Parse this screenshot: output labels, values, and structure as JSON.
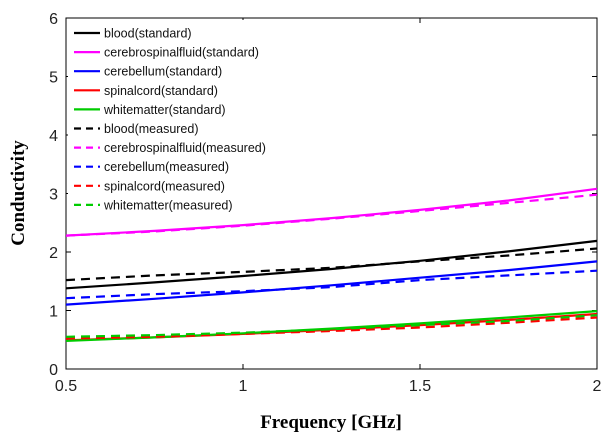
{
  "chart_data": {
    "type": "line",
    "xlabel": "Frequency [GHz]",
    "ylabel": "Conductivity",
    "xlim": [
      0.5,
      2
    ],
    "ylim": [
      0,
      6
    ],
    "xticks": [
      "0.5",
      "1",
      "1.5",
      "2"
    ],
    "yticks": [
      "0",
      "1",
      "2",
      "3",
      "4",
      "5",
      "6"
    ],
    "legend_position": "top-left",
    "x": [
      0.5,
      0.75,
      1.0,
      1.25,
      1.5,
      1.75,
      2.0
    ],
    "series": [
      {
        "name": "blood(standard)",
        "color": "#000000",
        "style": "solid",
        "values": [
          1.38,
          1.48,
          1.59,
          1.71,
          1.85,
          2.01,
          2.19
        ]
      },
      {
        "name": "cerebrospinalfluid(standard)",
        "color": "#ff00ff",
        "style": "solid",
        "values": [
          2.28,
          2.36,
          2.46,
          2.58,
          2.72,
          2.88,
          3.08
        ]
      },
      {
        "name": "cerebellum(standard)",
        "color": "#0000ff",
        "style": "solid",
        "values": [
          1.1,
          1.2,
          1.31,
          1.43,
          1.56,
          1.69,
          1.84
        ]
      },
      {
        "name": "spinalcord(standard)",
        "color": "#ff0000",
        "style": "solid",
        "values": [
          0.49,
          0.54,
          0.6,
          0.67,
          0.75,
          0.84,
          0.94
        ]
      },
      {
        "name": "whitematter(standard)",
        "color": "#00cc00",
        "style": "solid",
        "values": [
          0.48,
          0.54,
          0.61,
          0.69,
          0.78,
          0.88,
          0.99
        ]
      },
      {
        "name": "blood(measured)",
        "color": "#000000",
        "style": "dashed",
        "values": [
          1.52,
          1.6,
          1.66,
          1.73,
          1.84,
          1.94,
          2.06
        ]
      },
      {
        "name": "cerebrospinalfluid(measured)",
        "color": "#ff00ff",
        "style": "dashed",
        "values": [
          2.28,
          2.35,
          2.45,
          2.57,
          2.7,
          2.84,
          2.98
        ]
      },
      {
        "name": "cerebellum(measured)",
        "color": "#0000ff",
        "style": "dashed",
        "values": [
          1.21,
          1.28,
          1.33,
          1.4,
          1.52,
          1.6,
          1.68
        ]
      },
      {
        "name": "spinalcord(measured)",
        "color": "#ff0000",
        "style": "dashed",
        "values": [
          0.52,
          0.55,
          0.6,
          0.65,
          0.71,
          0.79,
          0.88
        ]
      },
      {
        "name": "whitematter(measured)",
        "color": "#00cc00",
        "style": "dashed",
        "values": [
          0.55,
          0.58,
          0.62,
          0.68,
          0.75,
          0.82,
          0.92
        ]
      }
    ]
  }
}
